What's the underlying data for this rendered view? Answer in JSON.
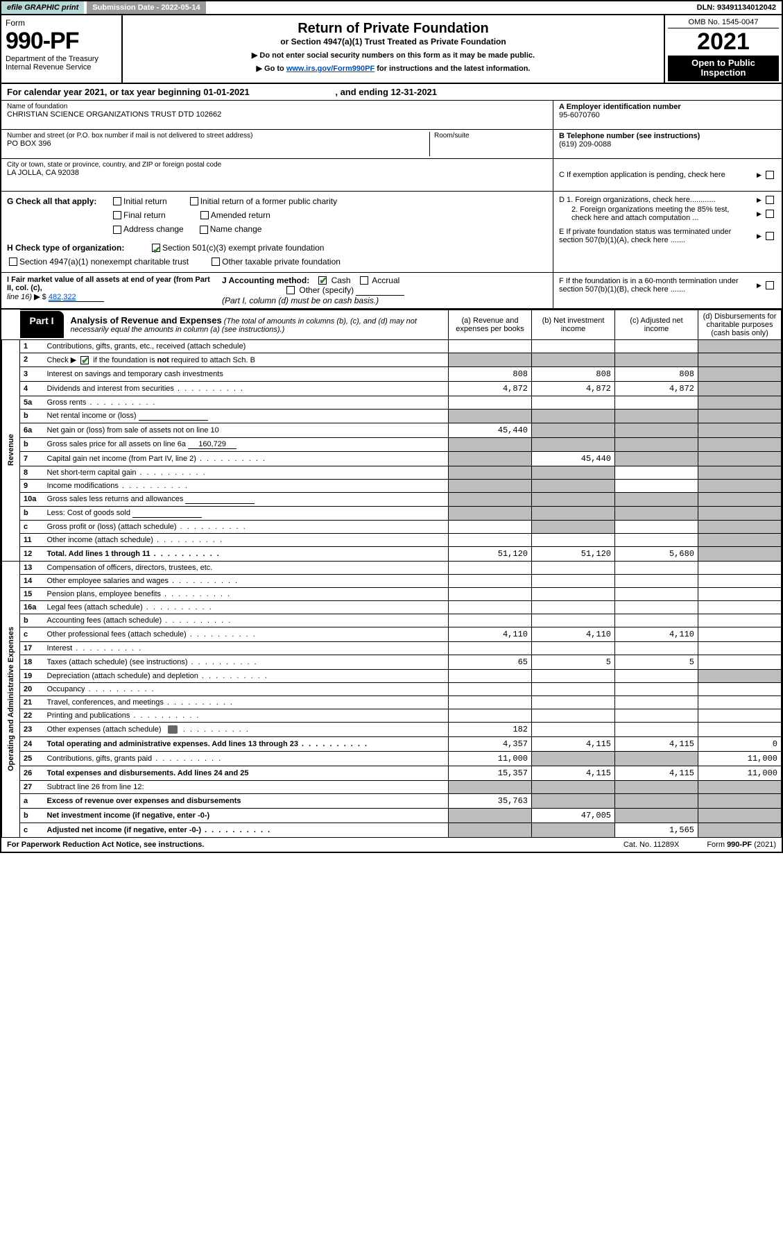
{
  "colors": {
    "efile_bg": "#b8d8d8",
    "subdate_bg": "#9a9a9a",
    "black": "#000000",
    "link": "#0050b3",
    "check_green": "#2e7d32",
    "shade": "#bdbdbd"
  },
  "topbar": {
    "efile": "efile GRAPHIC print",
    "subdate_label": "Submission Date - 2022-05-14",
    "dln": "DLN: 93491134012042"
  },
  "header": {
    "form_word": "Form",
    "form_number": "990-PF",
    "dept": "Department of the Treasury",
    "irs": "Internal Revenue Service",
    "title": "Return of Private Foundation",
    "subtitle": "or Section 4947(a)(1) Trust Treated as Private Foundation",
    "instr1": "▶ Do not enter social security numbers on this form as it may be made public.",
    "instr2_pre": "▶ Go to ",
    "instr2_link": "www.irs.gov/Form990PF",
    "instr2_post": " for instructions and the latest information.",
    "omb": "OMB No. 1545-0047",
    "year": "2021",
    "open_to": "Open to Public Inspection"
  },
  "calyear": {
    "text_pre": "For calendar year 2021, or tax year beginning ",
    "begin": "01-01-2021",
    "mid": " , and ending ",
    "end": "12-31-2021"
  },
  "ident": {
    "name_label": "Name of foundation",
    "name": "CHRISTIAN SCIENCE ORGANIZATIONS TRUST DTD 102662",
    "addr_label": "Number and street (or P.O. box number if mail is not delivered to street address)",
    "addr": "PO BOX 396",
    "room_label": "Room/suite",
    "city_label": "City or town, state or province, country, and ZIP or foreign postal code",
    "city": "LA JOLLA, CA  92038",
    "a_label": "A Employer identification number",
    "a_val": "95-6070760",
    "b_label": "B Telephone number (see instructions)",
    "b_val": "(619) 209-0088",
    "c_label": "C If exemption application is pending, check here"
  },
  "checks": {
    "g_label": "G Check all that apply:",
    "g_opts": [
      "Initial return",
      "Initial return of a former public charity",
      "Final return",
      "Amended return",
      "Address change",
      "Name change"
    ],
    "h_label": "H Check type of organization:",
    "h_501c3": "Section 501(c)(3) exempt private foundation",
    "h_4947": "Section 4947(a)(1) nonexempt charitable trust",
    "h_other": "Other taxable private foundation",
    "i_label1": "I Fair market value of all assets at end of year (from Part II, col. (c),",
    "i_label2": "line 16) ▶ $",
    "i_val": "482,322",
    "j_label": "J Accounting method:",
    "j_cash": "Cash",
    "j_accrual": "Accrual",
    "j_other": "Other (specify)",
    "j_note": "(Part I, column (d) must be on cash basis.)",
    "d1": "D 1. Foreign organizations, check here............",
    "d2": "2. Foreign organizations meeting the 85% test, check here and attach computation ...",
    "e": "E  If private foundation status was terminated under section 507(b)(1)(A), check here .......",
    "f": "F  If the foundation is in a 60-month termination under section 507(b)(1)(B), check here ......."
  },
  "part1": {
    "tag": "Part I",
    "title": "Analysis of Revenue and Expenses",
    "note": "(The total of amounts in columns (b), (c), and (d) may not necessarily equal the amounts in column (a) (see instructions).)",
    "col_a": "(a)   Revenue and expenses per books",
    "col_b": "(b)   Net investment income",
    "col_c": "(c)   Adjusted net income",
    "col_d": "(d)   Disbursements for charitable purposes (cash basis only)"
  },
  "sidelabels": {
    "revenue": "Revenue",
    "expenses": "Operating and Administrative Expenses"
  },
  "rows": [
    {
      "n": "1",
      "label": "Contributions, gifts, grants, etc., received (attach schedule)",
      "a": "",
      "b": "",
      "c": "",
      "d": "",
      "d_shade": true
    },
    {
      "n": "2",
      "label": "Check ▶ ☑ if the foundation is not required to attach Sch. B",
      "a": "",
      "b": "",
      "c": "",
      "d": "",
      "a_shade": true,
      "b_shade": true,
      "c_shade": true,
      "d_shade": true,
      "dots": true,
      "check_green": true
    },
    {
      "n": "3",
      "label": "Interest on savings and temporary cash investments",
      "a": "808",
      "b": "808",
      "c": "808",
      "d": "",
      "d_shade": true
    },
    {
      "n": "4",
      "label": "Dividends and interest from securities",
      "a": "4,872",
      "b": "4,872",
      "c": "4,872",
      "d": "",
      "d_shade": true,
      "dots": true
    },
    {
      "n": "5a",
      "label": "Gross rents",
      "a": "",
      "b": "",
      "c": "",
      "d": "",
      "d_shade": true,
      "dots": true
    },
    {
      "n": "b",
      "label": "Net rental income or (loss)",
      "a": "",
      "b": "",
      "c": "",
      "d": "",
      "a_shade": true,
      "b_shade": true,
      "c_shade": true,
      "d_shade": true,
      "inline_box": true
    },
    {
      "n": "6a",
      "label": "Net gain or (loss) from sale of assets not on line 10",
      "a": "45,440",
      "b": "",
      "c": "",
      "d": "",
      "b_shade": true,
      "c_shade": true,
      "d_shade": true
    },
    {
      "n": "b",
      "label": "Gross sales price for all assets on line 6a",
      "a": "",
      "b": "",
      "c": "",
      "d": "",
      "a_shade": true,
      "b_shade": true,
      "c_shade": true,
      "d_shade": true,
      "inline_val": "160,729"
    },
    {
      "n": "7",
      "label": "Capital gain net income (from Part IV, line 2)",
      "a": "",
      "b": "45,440",
      "c": "",
      "d": "",
      "a_shade": true,
      "c_shade": true,
      "d_shade": true,
      "dots": true
    },
    {
      "n": "8",
      "label": "Net short-term capital gain",
      "a": "",
      "b": "",
      "c": "",
      "d": "",
      "a_shade": true,
      "b_shade": true,
      "d_shade": true,
      "dots": true
    },
    {
      "n": "9",
      "label": "Income modifications",
      "a": "",
      "b": "",
      "c": "",
      "d": "",
      "a_shade": true,
      "b_shade": true,
      "d_shade": true,
      "dots": true
    },
    {
      "n": "10a",
      "label": "Gross sales less returns and allowances",
      "a": "",
      "b": "",
      "c": "",
      "d": "",
      "a_shade": true,
      "b_shade": true,
      "c_shade": true,
      "d_shade": true,
      "inline_box": true
    },
    {
      "n": "b",
      "label": "Less: Cost of goods sold",
      "a": "",
      "b": "",
      "c": "",
      "d": "",
      "a_shade": true,
      "b_shade": true,
      "c_shade": true,
      "d_shade": true,
      "inline_box": true,
      "dots": true
    },
    {
      "n": "c",
      "label": "Gross profit or (loss) (attach schedule)",
      "a": "",
      "b": "",
      "c": "",
      "d": "",
      "b_shade": true,
      "d_shade": true,
      "dots": true
    },
    {
      "n": "11",
      "label": "Other income (attach schedule)",
      "a": "",
      "b": "",
      "c": "",
      "d": "",
      "d_shade": true,
      "dots": true
    },
    {
      "n": "12",
      "label": "Total. Add lines 1 through 11",
      "a": "51,120",
      "b": "51,120",
      "c": "5,680",
      "d": "",
      "d_shade": true,
      "bold": true,
      "dots": true
    },
    {
      "n": "13",
      "label": "Compensation of officers, directors, trustees, etc.",
      "a": "",
      "b": "",
      "c": "",
      "d": ""
    },
    {
      "n": "14",
      "label": "Other employee salaries and wages",
      "a": "",
      "b": "",
      "c": "",
      "d": "",
      "dots": true
    },
    {
      "n": "15",
      "label": "Pension plans, employee benefits",
      "a": "",
      "b": "",
      "c": "",
      "d": "",
      "dots": true
    },
    {
      "n": "16a",
      "label": "Legal fees (attach schedule)",
      "a": "",
      "b": "",
      "c": "",
      "d": "",
      "dots": true
    },
    {
      "n": "b",
      "label": "Accounting fees (attach schedule)",
      "a": "",
      "b": "",
      "c": "",
      "d": "",
      "dots": true
    },
    {
      "n": "c",
      "label": "Other professional fees (attach schedule)",
      "a": "4,110",
      "b": "4,110",
      "c": "4,110",
      "d": "",
      "dots": true
    },
    {
      "n": "17",
      "label": "Interest",
      "a": "",
      "b": "",
      "c": "",
      "d": "",
      "dots": true
    },
    {
      "n": "18",
      "label": "Taxes (attach schedule) (see instructions)",
      "a": "65",
      "b": "5",
      "c": "5",
      "d": "",
      "dots": true
    },
    {
      "n": "19",
      "label": "Depreciation (attach schedule) and depletion",
      "a": "",
      "b": "",
      "c": "",
      "d": "",
      "d_shade": true,
      "dots": true
    },
    {
      "n": "20",
      "label": "Occupancy",
      "a": "",
      "b": "",
      "c": "",
      "d": "",
      "dots": true
    },
    {
      "n": "21",
      "label": "Travel, conferences, and meetings",
      "a": "",
      "b": "",
      "c": "",
      "d": "",
      "dots": true
    },
    {
      "n": "22",
      "label": "Printing and publications",
      "a": "",
      "b": "",
      "c": "",
      "d": "",
      "dots": true
    },
    {
      "n": "23",
      "label": "Other expenses (attach schedule)",
      "a": "182",
      "b": "",
      "c": "",
      "d": "",
      "dots": true,
      "attach_icon": true
    },
    {
      "n": "24",
      "label": "Total operating and administrative expenses. Add lines 13 through 23",
      "a": "4,357",
      "b": "4,115",
      "c": "4,115",
      "d": "0",
      "bold": true,
      "dots": true
    },
    {
      "n": "25",
      "label": "Contributions, gifts, grants paid",
      "a": "11,000",
      "b": "",
      "c": "",
      "d": "11,000",
      "b_shade": true,
      "c_shade": true,
      "dots": true
    },
    {
      "n": "26",
      "label": "Total expenses and disbursements. Add lines 24 and 25",
      "a": "15,357",
      "b": "4,115",
      "c": "4,115",
      "d": "11,000",
      "bold": true
    },
    {
      "n": "27",
      "label": "Subtract line 26 from line 12:",
      "a": "",
      "b": "",
      "c": "",
      "d": "",
      "a_shade": true,
      "b_shade": true,
      "c_shade": true,
      "d_shade": true
    },
    {
      "n": "a",
      "label": "Excess of revenue over expenses and disbursements",
      "a": "35,763",
      "b": "",
      "c": "",
      "d": "",
      "b_shade": true,
      "c_shade": true,
      "d_shade": true,
      "bold": true
    },
    {
      "n": "b",
      "label": "Net investment income (if negative, enter -0-)",
      "a": "",
      "b": "47,005",
      "c": "",
      "d": "",
      "a_shade": true,
      "c_shade": true,
      "d_shade": true,
      "bold": true
    },
    {
      "n": "c",
      "label": "Adjusted net income (if negative, enter -0-)",
      "a": "",
      "b": "",
      "c": "1,565",
      "d": "",
      "a_shade": true,
      "b_shade": true,
      "d_shade": true,
      "bold": true,
      "dots": true
    }
  ],
  "footer": {
    "left": "For Paperwork Reduction Act Notice, see instructions.",
    "mid": "Cat. No. 11289X",
    "right": "Form 990-PF (2021)"
  }
}
